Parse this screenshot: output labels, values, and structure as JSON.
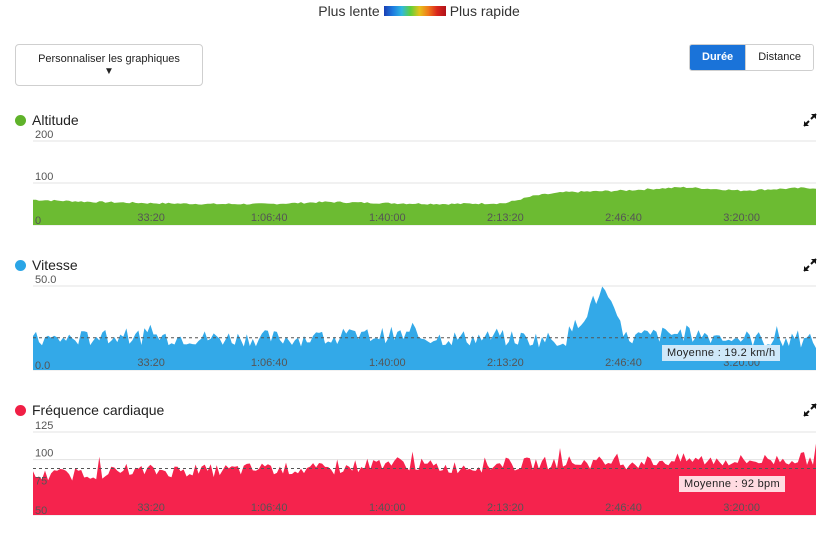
{
  "speed_legend": {
    "slow": "Plus lente",
    "fast": "Plus rapide"
  },
  "customize_button": {
    "label": "Personnaliser les graphiques",
    "caret": "▼"
  },
  "view_toggle": {
    "duration": "Durée",
    "distance": "Distance",
    "active": "Durée"
  },
  "charts": [
    {
      "id": "altitude",
      "title": "Altitude",
      "color": "#6cbb32",
      "dot_color": "#5fb22a",
      "y_ticks": [
        "200",
        "100",
        "0"
      ],
      "x_ticks": [
        "33:20",
        "1:06:40",
        "1:40:00",
        "2:13:20",
        "2:46:40",
        "3:20:00"
      ],
      "average_label": null
    },
    {
      "id": "speed",
      "title": "Vitesse",
      "color": "#33a9e8",
      "dot_color": "#2aa5e6",
      "y_ticks": [
        "50.0",
        "0.0"
      ],
      "x_ticks": [
        "33:20",
        "1:06:40",
        "1:40:00",
        "2:13:20",
        "2:46:40",
        "3:20:00"
      ],
      "average_label": "Moyenne : 19.2 km/h"
    },
    {
      "id": "heart_rate",
      "title": "Fréquence cardiaque",
      "color": "#f5234d",
      "dot_color": "#f01f45",
      "y_ticks": [
        "125",
        "100",
        "75",
        "50"
      ],
      "x_ticks": [
        "33:20",
        "1:06:40",
        "1:40:00",
        "2:13:20",
        "2:46:40",
        "3:20:00"
      ],
      "average_label": "Moyenne : 92 bpm"
    }
  ],
  "chart_data": [
    {
      "type": "area",
      "title": "Altitude",
      "x_unit": "duration",
      "ylim": [
        0,
        200
      ],
      "grid": true,
      "x": [
        "0:00",
        "16:40",
        "33:20",
        "50:00",
        "1:06:40",
        "1:23:20",
        "1:40:00",
        "1:56:40",
        "2:13:20",
        "2:21:40",
        "2:30:00",
        "2:46:40",
        "3:03:20",
        "3:20:00",
        "3:36:40"
      ],
      "values": [
        60,
        55,
        52,
        50,
        50,
        55,
        52,
        50,
        52,
        70,
        78,
        82,
        90,
        82,
        88
      ]
    },
    {
      "type": "area",
      "title": "Vitesse",
      "x_unit": "duration",
      "ylim": [
        0,
        50
      ],
      "grid": true,
      "average": 19.2,
      "average_unit": "km/h",
      "x": [
        "0:00",
        "16:40",
        "33:20",
        "50:00",
        "1:06:40",
        "1:23:20",
        "1:40:00",
        "1:56:40",
        "2:13:20",
        "2:30:00",
        "2:41:00",
        "2:46:40",
        "3:03:20",
        "3:20:00",
        "3:36:40"
      ],
      "values": [
        18,
        19,
        20,
        19,
        19,
        19,
        21,
        19,
        19,
        18,
        48,
        19,
        22,
        19,
        17
      ]
    },
    {
      "type": "area",
      "title": "Fréquence cardiaque",
      "x_unit": "duration",
      "ylim": [
        50,
        125
      ],
      "grid": true,
      "average": 92,
      "average_unit": "bpm",
      "x": [
        "0:00",
        "16:40",
        "33:20",
        "50:00",
        "1:06:40",
        "1:23:20",
        "1:40:00",
        "1:56:40",
        "2:13:20",
        "2:30:00",
        "2:46:40",
        "3:03:20",
        "3:20:00",
        "3:36:40"
      ],
      "values": [
        85,
        88,
        90,
        90,
        92,
        91,
        98,
        93,
        95,
        98,
        97,
        100,
        99,
        101
      ]
    }
  ]
}
